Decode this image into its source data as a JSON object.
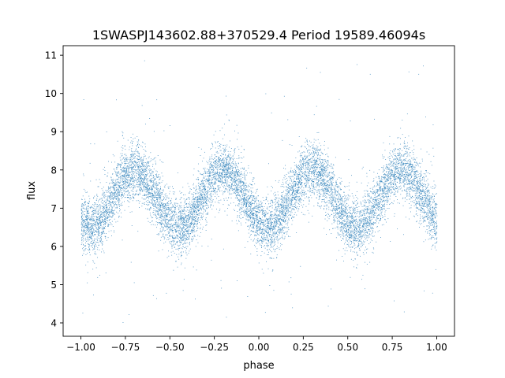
{
  "chart_data": {
    "type": "scatter",
    "title": "1SWASPJ143602.88+370529.4 Period 19589.46094s",
    "xlabel": "phase",
    "ylabel": "flux",
    "xlim": [
      -1.1,
      1.1
    ],
    "ylim": [
      3.65,
      11.25
    ],
    "xticks": [
      "−1.00",
      "−0.75",
      "−0.50",
      "−0.25",
      "0.00",
      "0.25",
      "0.50",
      "0.75",
      "1.00"
    ],
    "xtick_values": [
      -1.0,
      -0.75,
      -0.5,
      -0.25,
      0.0,
      0.25,
      0.5,
      0.75,
      1.0
    ],
    "yticks": [
      "4",
      "5",
      "6",
      "7",
      "8",
      "9",
      "10",
      "11"
    ],
    "ytick_values": [
      4,
      5,
      6,
      7,
      8,
      9,
      10,
      11
    ],
    "grid": false,
    "legend": "none",
    "marker_color": "#1f77b4",
    "series": [
      {
        "phase_range": [
          -1.0,
          1.0
        ],
        "profile": "two cycles per unit phase (period 0.5): maxima near phase -0.70, -0.20, 0.30, 0.80 at flux ~8.0; minima near -0.95, -0.45, 0.05, 0.55 at flux ~6.5; scatter sigma ~0.35; sparse outliers between 4.0 and 10.9",
        "maxima": [
          {
            "x": -0.7,
            "y": 8.0
          },
          {
            "x": -0.2,
            "y": 8.0
          },
          {
            "x": 0.3,
            "y": 8.05
          },
          {
            "x": 0.8,
            "y": 7.95
          }
        ],
        "minima": [
          {
            "x": -0.95,
            "y": 6.55
          },
          {
            "x": -0.45,
            "y": 6.5
          },
          {
            "x": 0.05,
            "y": 6.5
          },
          {
            "x": 0.55,
            "y": 6.5
          }
        ],
        "mean_flux": 7.25,
        "semi_amplitude": 0.75,
        "scatter_sigma": 0.35,
        "outlier_range": [
          4.0,
          10.9
        ]
      }
    ]
  }
}
